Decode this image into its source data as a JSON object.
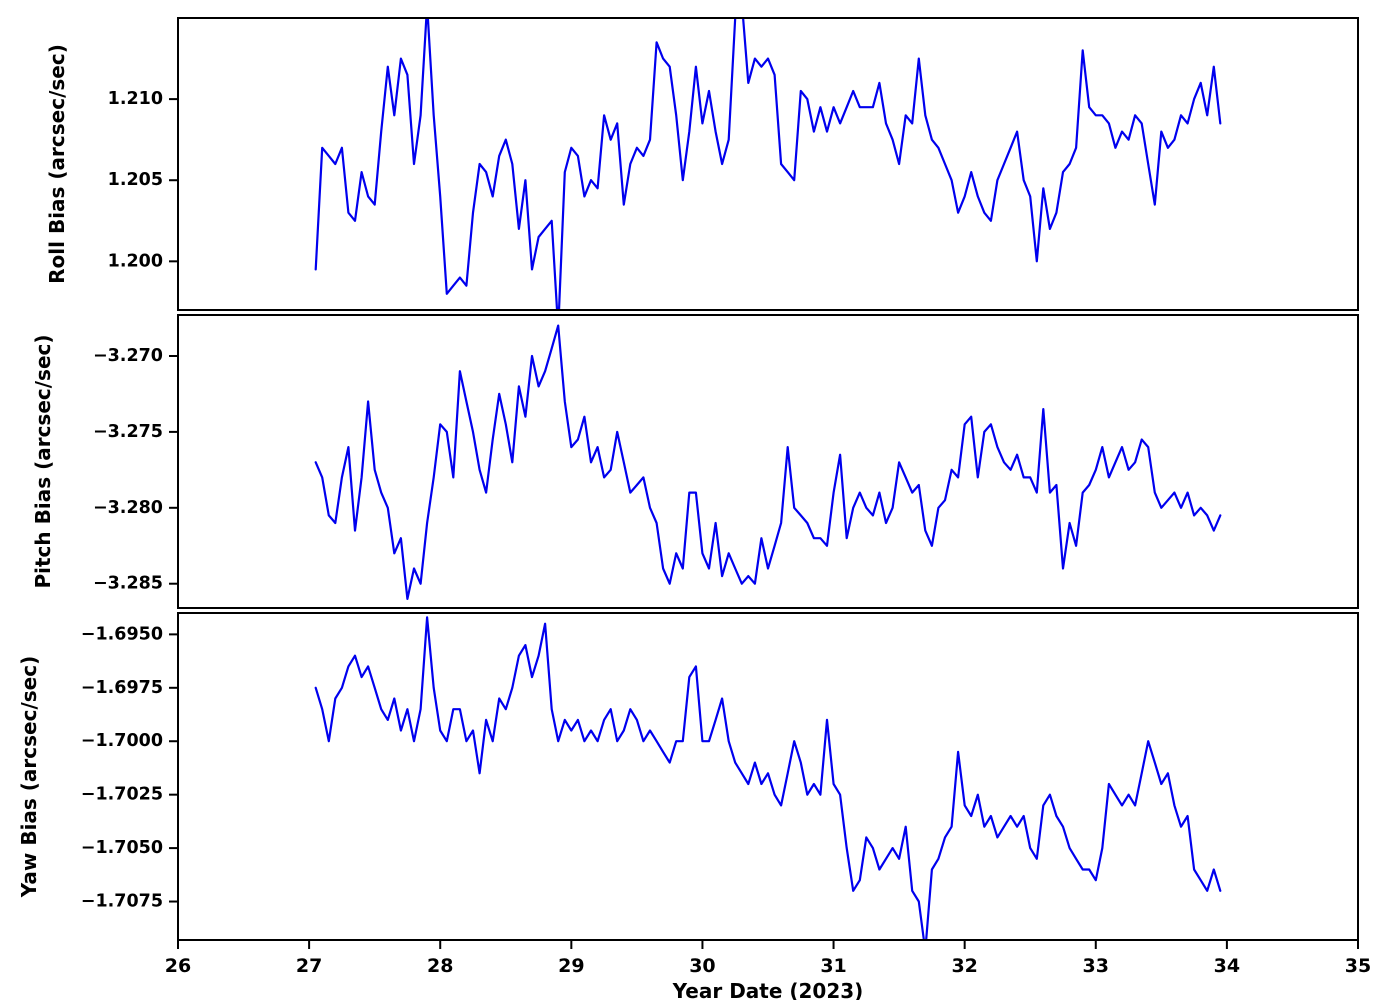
{
  "figure": {
    "xlabel": "Year Date (2023)",
    "xlim": [
      26,
      35
    ],
    "x_ticks": [
      26,
      27,
      28,
      29,
      30,
      31,
      32,
      33,
      34,
      35
    ],
    "background": "#ffffff",
    "line_color": "#0000ee",
    "axis_color": "#000000"
  },
  "chart_data": [
    {
      "type": "line",
      "name": "roll-bias",
      "ylabel": "Roll Bias (arcsec/sec)",
      "ylim": [
        1.197,
        1.215
      ],
      "y_ticks": [
        1.2,
        1.205,
        1.21
      ],
      "tick_decimals": 3,
      "x_start": 27.05,
      "x_step": 0.05,
      "y": [
        1.1995,
        1.207,
        1.2065,
        1.206,
        1.207,
        1.203,
        1.2025,
        1.2055,
        1.204,
        1.2035,
        1.208,
        1.212,
        1.209,
        1.2125,
        1.2115,
        1.206,
        1.209,
        1.2158,
        1.209,
        1.204,
        1.198,
        1.1985,
        1.199,
        1.1985,
        1.203,
        1.206,
        1.2055,
        1.204,
        1.2065,
        1.2075,
        1.206,
        1.202,
        1.205,
        1.1995,
        1.2015,
        1.202,
        1.2025,
        1.1958,
        1.2055,
        1.207,
        1.2065,
        1.204,
        1.205,
        1.2045,
        1.209,
        1.2075,
        1.2085,
        1.2035,
        1.206,
        1.207,
        1.2065,
        1.2075,
        1.2135,
        1.2125,
        1.212,
        1.209,
        1.205,
        1.208,
        1.212,
        1.2085,
        1.2105,
        1.208,
        1.206,
        1.2075,
        1.215,
        1.216,
        1.211,
        1.2125,
        1.212,
        1.2125,
        1.2115,
        1.206,
        1.2055,
        1.205,
        1.2105,
        1.21,
        1.208,
        1.2095,
        1.208,
        1.2095,
        1.2085,
        1.2095,
        1.2105,
        1.2095,
        1.2095,
        1.2095,
        1.211,
        1.2085,
        1.2075,
        1.206,
        1.209,
        1.2085,
        1.2125,
        1.209,
        1.2075,
        1.207,
        1.206,
        1.205,
        1.203,
        1.204,
        1.2055,
        1.204,
        1.203,
        1.2025,
        1.205,
        1.206,
        1.207,
        1.208,
        1.205,
        1.204,
        1.2,
        1.2045,
        1.202,
        1.203,
        1.2055,
        1.206,
        1.207,
        1.213,
        1.2095,
        1.209,
        1.209,
        1.2085,
        1.207,
        1.208,
        1.2075,
        1.209,
        1.2085,
        1.206,
        1.2035,
        1.208,
        1.207,
        1.2075,
        1.209,
        1.2085,
        1.21,
        1.211,
        1.209,
        1.212,
        1.2085
      ]
    },
    {
      "type": "line",
      "name": "pitch-bias",
      "ylabel": "Pitch Bias (arcsec/sec)",
      "ylim": [
        -3.2866,
        -3.2673
      ],
      "y_ticks": [
        -3.285,
        -3.28,
        -3.275,
        -3.27
      ],
      "tick_decimals": 3,
      "x_start": 27.05,
      "x_step": 0.05,
      "y": [
        -3.277,
        -3.278,
        -3.2805,
        -3.281,
        -3.278,
        -3.276,
        -3.2815,
        -3.278,
        -3.273,
        -3.2775,
        -3.279,
        -3.28,
        -3.283,
        -3.282,
        -3.286,
        -3.284,
        -3.285,
        -3.281,
        -3.278,
        -3.2745,
        -3.275,
        -3.278,
        -3.271,
        -3.273,
        -3.275,
        -3.2775,
        -3.279,
        -3.2755,
        -3.2725,
        -3.2745,
        -3.277,
        -3.272,
        -3.274,
        -3.27,
        -3.272,
        -3.271,
        -3.2695,
        -3.268,
        -3.273,
        -3.276,
        -3.2755,
        -3.274,
        -3.277,
        -3.276,
        -3.278,
        -3.2775,
        -3.275,
        -3.277,
        -3.279,
        -3.2785,
        -3.278,
        -3.28,
        -3.281,
        -3.284,
        -3.285,
        -3.283,
        -3.284,
        -3.279,
        -3.279,
        -3.283,
        -3.284,
        -3.281,
        -3.2845,
        -3.283,
        -3.284,
        -3.285,
        -3.2845,
        -3.285,
        -3.282,
        -3.284,
        -3.2825,
        -3.281,
        -3.276,
        -3.28,
        -3.2805,
        -3.281,
        -3.282,
        -3.282,
        -3.2825,
        -3.279,
        -3.2765,
        -3.282,
        -3.28,
        -3.279,
        -3.28,
        -3.2805,
        -3.279,
        -3.281,
        -3.28,
        -3.277,
        -3.278,
        -3.279,
        -3.2785,
        -3.2815,
        -3.2825,
        -3.28,
        -3.2795,
        -3.2775,
        -3.278,
        -3.2745,
        -3.274,
        -3.278,
        -3.275,
        -3.2745,
        -3.276,
        -3.277,
        -3.2775,
        -3.2765,
        -3.278,
        -3.278,
        -3.279,
        -3.2735,
        -3.279,
        -3.2785,
        -3.284,
        -3.281,
        -3.2825,
        -3.279,
        -3.2785,
        -3.2775,
        -3.276,
        -3.278,
        -3.277,
        -3.276,
        -3.2775,
        -3.277,
        -3.2755,
        -3.276,
        -3.279,
        -3.28,
        -3.2795,
        -3.279,
        -3.28,
        -3.279,
        -3.2805,
        -3.28,
        -3.2805,
        -3.2815,
        -3.2805
      ]
    },
    {
      "type": "line",
      "name": "yaw-bias",
      "ylabel": "Yaw Bias (arcsec/sec)",
      "ylim": [
        -1.7093,
        -1.694
      ],
      "y_ticks": [
        -1.7075,
        -1.705,
        -1.7025,
        -1.7,
        -1.6975,
        -1.695
      ],
      "tick_decimals": 4,
      "x_start": 27.05,
      "x_step": 0.05,
      "y": [
        -1.6975,
        -1.6985,
        -1.7,
        -1.698,
        -1.6975,
        -1.6965,
        -1.696,
        -1.697,
        -1.6965,
        -1.6975,
        -1.6985,
        -1.699,
        -1.698,
        -1.6995,
        -1.6985,
        -1.7,
        -1.6985,
        -1.6942,
        -1.6975,
        -1.6995,
        -1.7,
        -1.6985,
        -1.6985,
        -1.7,
        -1.6995,
        -1.7015,
        -1.699,
        -1.7,
        -1.698,
        -1.6985,
        -1.6975,
        -1.696,
        -1.6955,
        -1.697,
        -1.696,
        -1.6945,
        -1.6985,
        -1.7,
        -1.699,
        -1.6995,
        -1.699,
        -1.7,
        -1.6995,
        -1.7,
        -1.699,
        -1.6985,
        -1.7,
        -1.6995,
        -1.6985,
        -1.699,
        -1.7,
        -1.6995,
        -1.7,
        -1.7005,
        -1.701,
        -1.7,
        -1.7,
        -1.697,
        -1.6965,
        -1.7,
        -1.7,
        -1.699,
        -1.698,
        -1.7,
        -1.701,
        -1.7015,
        -1.702,
        -1.701,
        -1.702,
        -1.7015,
        -1.7025,
        -1.703,
        -1.7015,
        -1.7,
        -1.701,
        -1.7025,
        -1.702,
        -1.7025,
        -1.699,
        -1.702,
        -1.7025,
        -1.705,
        -1.707,
        -1.7065,
        -1.7045,
        -1.705,
        -1.706,
        -1.7055,
        -1.705,
        -1.7055,
        -1.704,
        -1.707,
        -1.7075,
        -1.7098,
        -1.706,
        -1.7055,
        -1.7045,
        -1.704,
        -1.7005,
        -1.703,
        -1.7035,
        -1.7025,
        -1.704,
        -1.7035,
        -1.7045,
        -1.704,
        -1.7035,
        -1.704,
        -1.7035,
        -1.705,
        -1.7055,
        -1.703,
        -1.7025,
        -1.7035,
        -1.704,
        -1.705,
        -1.7055,
        -1.706,
        -1.706,
        -1.7065,
        -1.705,
        -1.702,
        -1.7025,
        -1.703,
        -1.7025,
        -1.703,
        -1.7015,
        -1.7,
        -1.701,
        -1.702,
        -1.7015,
        -1.703,
        -1.704,
        -1.7035,
        -1.706,
        -1.7065,
        -1.707,
        -1.706,
        -1.707
      ]
    }
  ]
}
